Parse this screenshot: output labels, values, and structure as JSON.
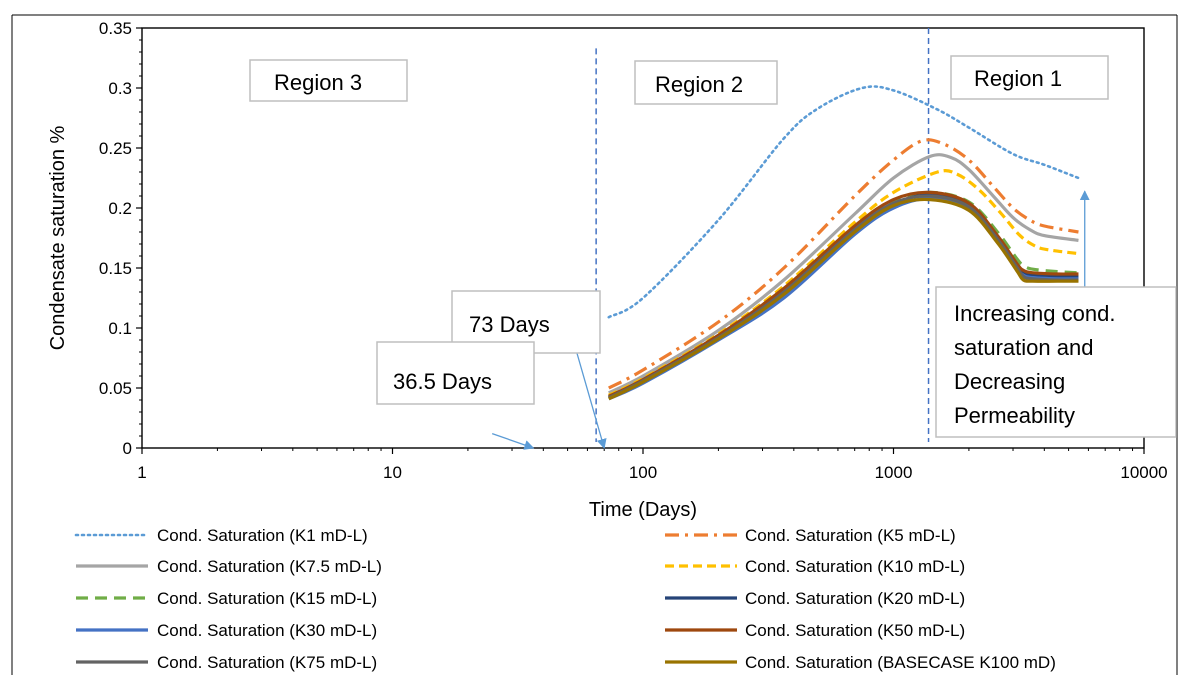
{
  "chart_data": {
    "type": "line",
    "xscale": "log",
    "xlim": [
      1,
      10000
    ],
    "ylim": [
      0,
      0.35
    ],
    "xlabel": "Time (Days)",
    "ylabel": "Condensate saturation %",
    "xticks": [
      "1",
      "10",
      "100",
      "1000",
      "10000"
    ],
    "yticks": [
      "0",
      "0.05",
      "0.1",
      "0.15",
      "0.2",
      "0.25",
      "0.3",
      "0.35"
    ],
    "grid": false,
    "legend_position": "bottom",
    "series": [
      {
        "name": "Cond. Saturation (K1 mD-L)",
        "color": "#5B9BD5",
        "dash": "dotted",
        "x": [
          73,
          100,
          200,
          365,
          500,
          750,
          1000,
          1500,
          2000,
          3000,
          4000,
          5475
        ],
        "y": [
          0.109,
          0.125,
          0.19,
          0.258,
          0.283,
          0.3,
          0.298,
          0.282,
          0.267,
          0.245,
          0.236,
          0.225
        ]
      },
      {
        "name": "Cond. Saturation (K5 mD-L)",
        "color": "#ED7D31",
        "dash": "dashdot",
        "x": [
          73,
          100,
          200,
          365,
          700,
          1000,
          1300,
          1600,
          2000,
          2500,
          3000,
          3500,
          4000,
          5475
        ],
        "y": [
          0.05,
          0.065,
          0.105,
          0.15,
          0.21,
          0.24,
          0.256,
          0.253,
          0.24,
          0.218,
          0.2,
          0.19,
          0.185,
          0.18
        ]
      },
      {
        "name": "Cond. Saturation (K7.5 mD-L)",
        "color": "#A5A5A5",
        "dash": "solid",
        "x": [
          73,
          100,
          200,
          365,
          700,
          1000,
          1400,
          1700,
          2000,
          2500,
          3000,
          3500,
          4000,
          5475
        ],
        "y": [
          0.046,
          0.06,
          0.098,
          0.14,
          0.195,
          0.225,
          0.243,
          0.242,
          0.232,
          0.21,
          0.192,
          0.182,
          0.177,
          0.173
        ]
      },
      {
        "name": "Cond. Saturation (K10 mD-L)",
        "color": "#FFC000",
        "dash": "dashed",
        "x": [
          73,
          100,
          200,
          365,
          700,
          1000,
          1500,
          1800,
          2200,
          2700,
          3200,
          3700,
          4200,
          5475
        ],
        "y": [
          0.044,
          0.058,
          0.095,
          0.135,
          0.188,
          0.213,
          0.23,
          0.228,
          0.215,
          0.195,
          0.177,
          0.168,
          0.165,
          0.162
        ]
      },
      {
        "name": "Cond. Saturation (K15 mD-L)",
        "color": "#70AD47",
        "dash": "longdash",
        "x": [
          73,
          100,
          200,
          365,
          700,
          1000,
          1400,
          2000,
          2600,
          3100,
          3300,
          3600,
          4500,
          5475
        ],
        "y": [
          0.043,
          0.057,
          0.093,
          0.132,
          0.182,
          0.205,
          0.213,
          0.205,
          0.18,
          0.158,
          0.152,
          0.149,
          0.147,
          0.146
        ]
      },
      {
        "name": "Cond. Saturation (K20 mD-L)",
        "color": "#264478",
        "dash": "solid",
        "x": [
          73,
          100,
          200,
          365,
          700,
          1000,
          1400,
          2000,
          2600,
          3100,
          3300,
          3600,
          4500,
          5475
        ],
        "y": [
          0.042,
          0.056,
          0.092,
          0.128,
          0.18,
          0.203,
          0.211,
          0.202,
          0.175,
          0.152,
          0.146,
          0.144,
          0.143,
          0.143
        ]
      },
      {
        "name": "Cond. Saturation (K30 mD-L)",
        "color": "#4472C4",
        "dash": "solid",
        "x": [
          73,
          100,
          200,
          365,
          700,
          1000,
          1400,
          2000,
          2600,
          3100,
          3300,
          3600,
          4500,
          5475
        ],
        "y": [
          0.041,
          0.054,
          0.09,
          0.125,
          0.178,
          0.2,
          0.208,
          0.2,
          0.173,
          0.15,
          0.144,
          0.142,
          0.141,
          0.141
        ]
      },
      {
        "name": "Cond. Saturation (K50 mD-L)",
        "color": "#9E480E",
        "dash": "solid",
        "x": [
          73,
          100,
          200,
          365,
          700,
          1000,
          1400,
          2000,
          2600,
          3100,
          3300,
          3600,
          4500,
          5475
        ],
        "y": [
          0.043,
          0.057,
          0.094,
          0.133,
          0.185,
          0.207,
          0.213,
          0.204,
          0.177,
          0.154,
          0.148,
          0.146,
          0.145,
          0.145
        ]
      },
      {
        "name": "Cond. Saturation (K75 mD-L)",
        "color": "#636363",
        "dash": "solid",
        "x": [
          73,
          100,
          200,
          365,
          700,
          1000,
          1400,
          2000,
          2600,
          3100,
          3300,
          3600,
          4500,
          5475
        ],
        "y": [
          0.042,
          0.056,
          0.092,
          0.13,
          0.182,
          0.204,
          0.21,
          0.201,
          0.174,
          0.151,
          0.143,
          0.141,
          0.14,
          0.14
        ]
      },
      {
        "name": "Cond. Saturation (BASECASE K100 mD)",
        "color": "#997300",
        "dash": "solid",
        "x": [
          73,
          100,
          200,
          365,
          700,
          1000,
          1400,
          2000,
          2600,
          3100,
          3300,
          3600,
          4500,
          5475
        ],
        "y": [
          0.041,
          0.055,
          0.091,
          0.128,
          0.18,
          0.202,
          0.207,
          0.198,
          0.171,
          0.148,
          0.14,
          0.139,
          0.139,
          0.139
        ]
      }
    ],
    "vlines": [
      {
        "x": 65,
        "y_top": 0.333,
        "color": "#4472C4"
      },
      {
        "x": 1380,
        "y_top": 0.35,
        "color": "#4472C4"
      }
    ],
    "arrows": [
      {
        "x1": 25,
        "y1": 0.012,
        "x2": 36.5,
        "y2": 0.0
      },
      {
        "x1": 51,
        "y1": 0.1,
        "x2": 70,
        "y2": 0.0
      },
      {
        "x1": 5800,
        "y1": 0.03,
        "x2": 5800,
        "y2": 0.214
      }
    ],
    "annotations": [
      {
        "id": "region3",
        "lines": [
          "Region 3"
        ]
      },
      {
        "id": "region2",
        "lines": [
          "Region 2"
        ]
      },
      {
        "id": "region1",
        "lines": [
          "Region 1"
        ]
      },
      {
        "id": "days73",
        "lines": [
          "73 Days"
        ]
      },
      {
        "id": "days365",
        "lines": [
          "36.5 Days"
        ]
      },
      {
        "id": "increasing",
        "lines": [
          "Increasing cond.",
          "saturation and",
          "Decreasing",
          "Permeability"
        ]
      }
    ]
  }
}
